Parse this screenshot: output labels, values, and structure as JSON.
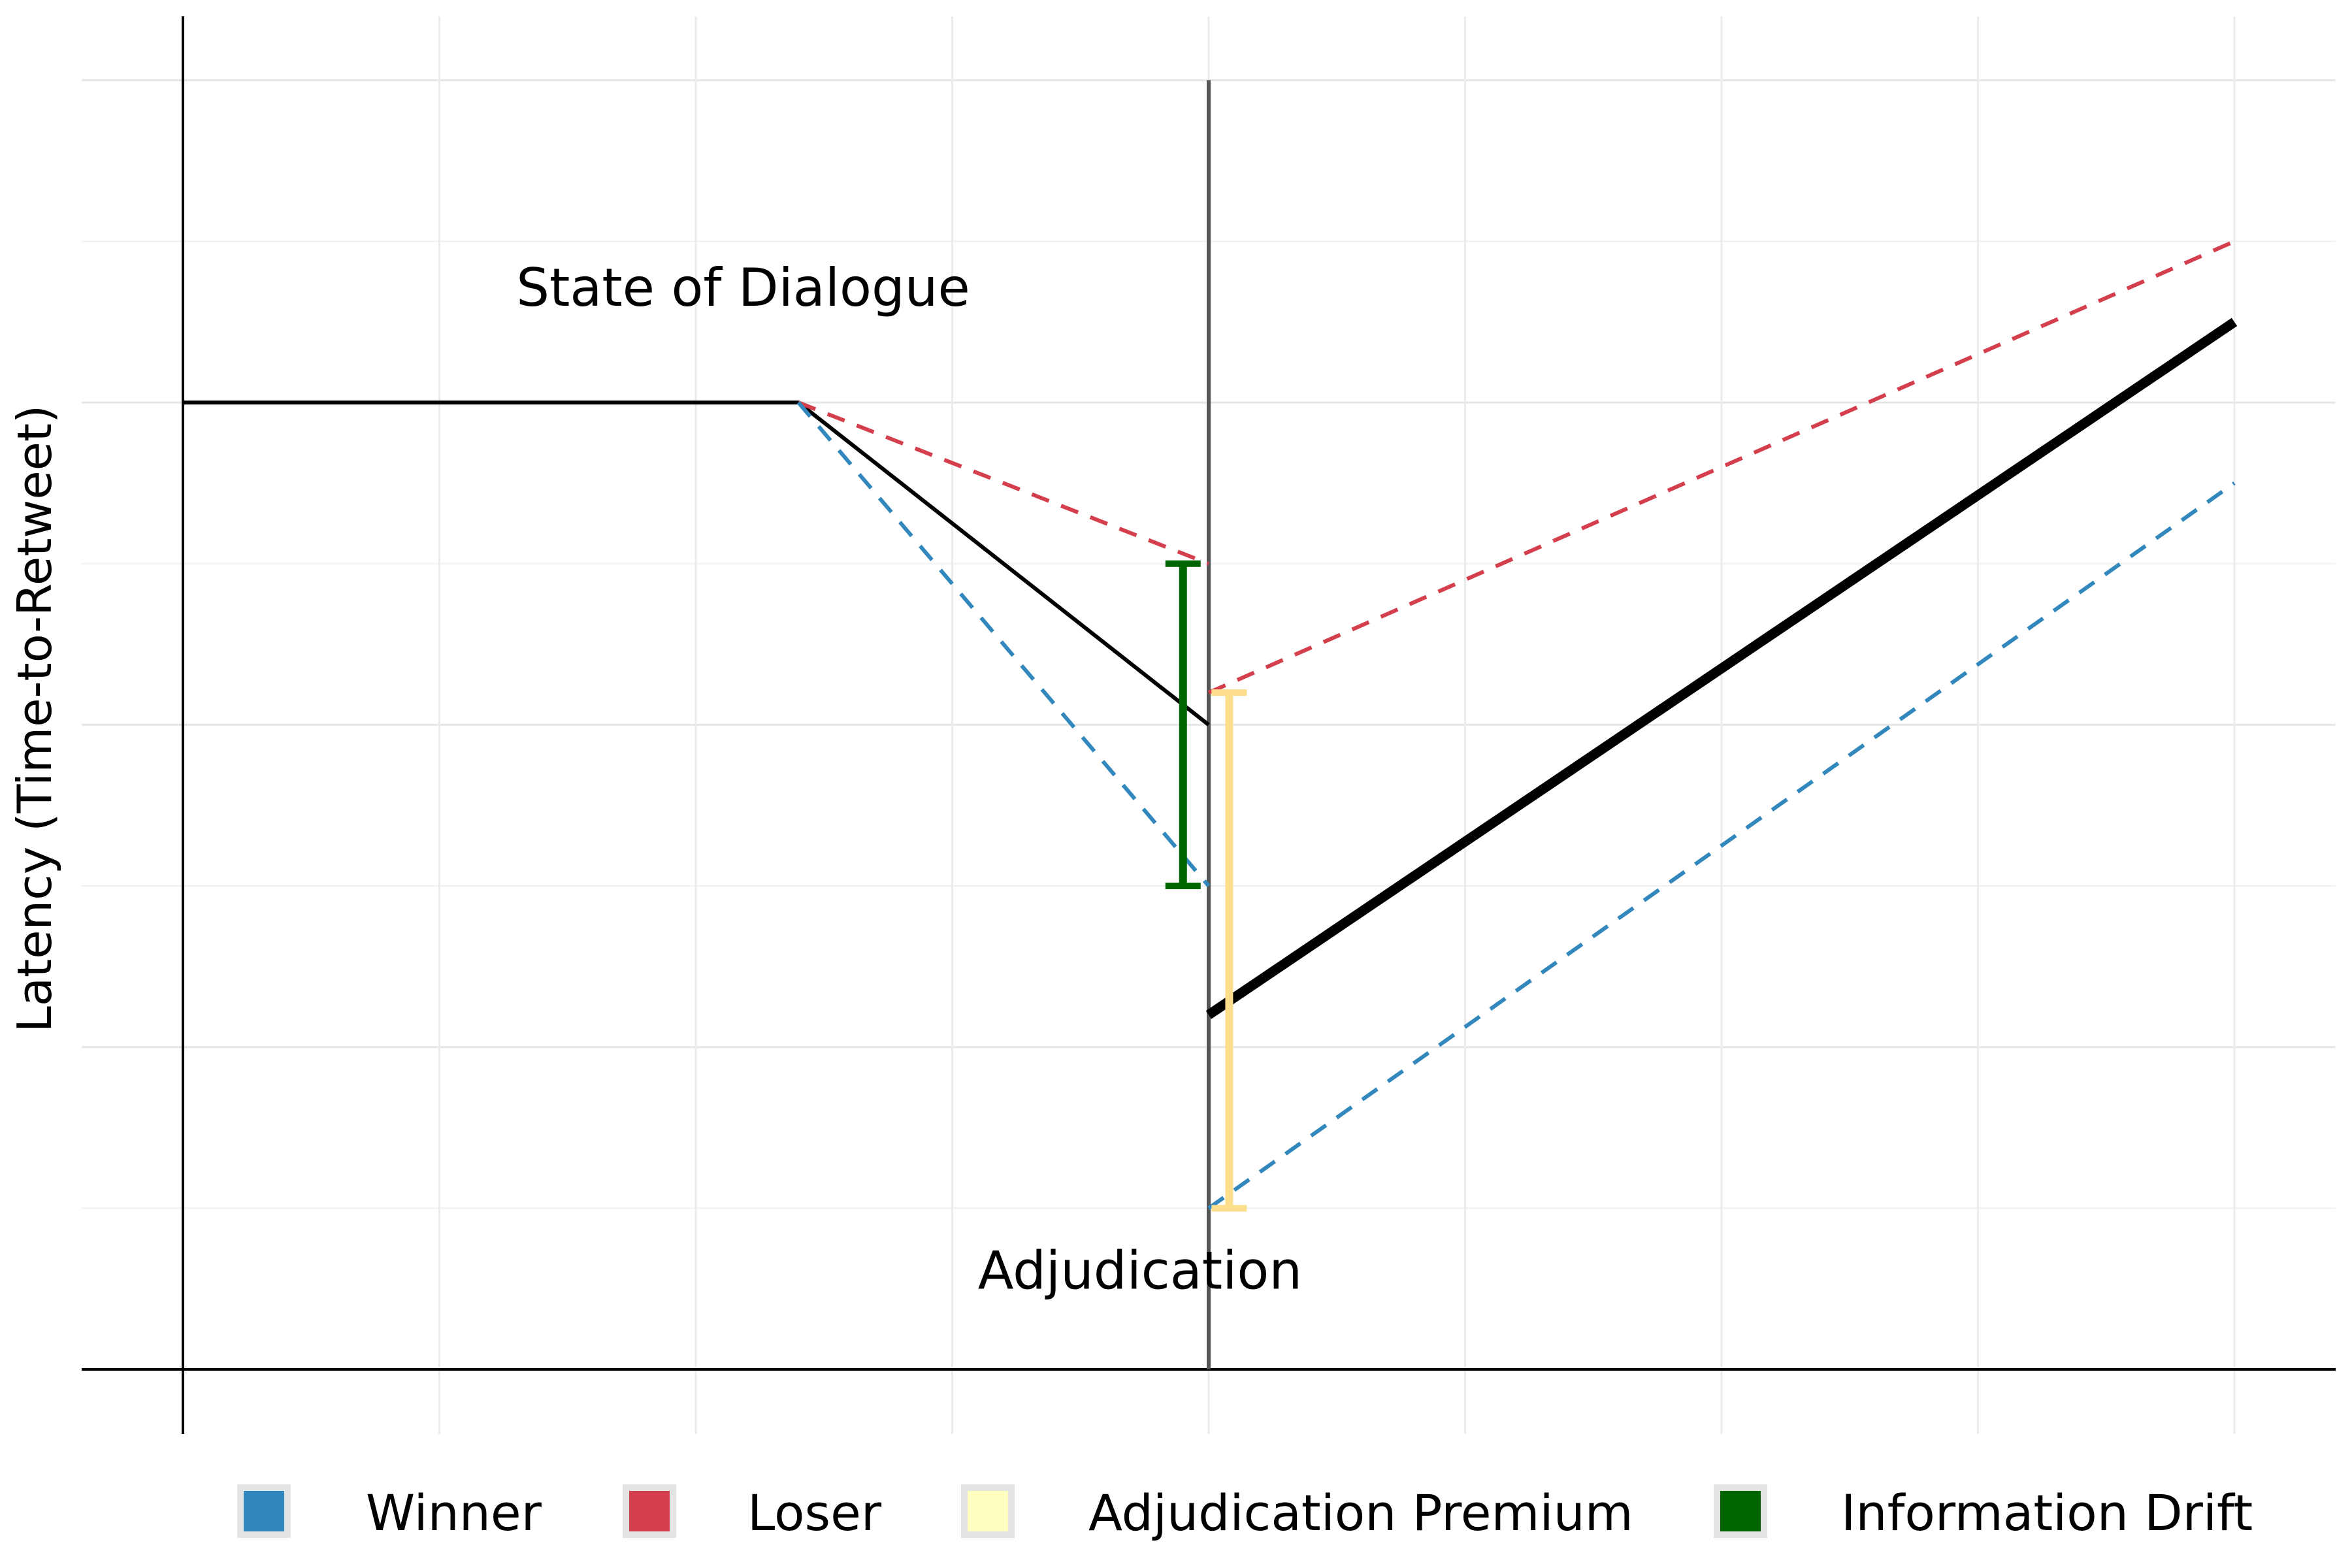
{
  "chart_data": {
    "type": "line",
    "title": "",
    "xlabel": "",
    "ylabel": "Latency (Time-to-Retweet)",
    "xlim": [
      0,
      8.4
    ],
    "ylim": [
      0,
      4.2
    ],
    "grid": true,
    "legend_position": "bottom",
    "annotations": [
      {
        "text": "State of Dialogue",
        "x": 1.3,
        "y": 3.3
      },
      {
        "text": "Adjudication",
        "x": 3.1,
        "y": 0.25
      }
    ],
    "vline": {
      "x": 4.0,
      "label": "Adjudication"
    },
    "series": [
      {
        "role": "overall-pre",
        "style": "solid",
        "width": "thin",
        "color": "#000000",
        "points": [
          [
            0,
            3.0
          ],
          [
            2.4,
            3.0
          ],
          [
            4.0,
            2.0
          ]
        ]
      },
      {
        "role": "overall-post",
        "style": "solid",
        "width": "thick",
        "color": "#000000",
        "points": [
          [
            4.0,
            1.1
          ],
          [
            8.0,
            3.25
          ]
        ]
      },
      {
        "name": "Loser",
        "style": "dashed",
        "color": "#D43F4E",
        "points": [
          [
            2.4,
            3.0
          ],
          [
            4.0,
            2.5
          ]
        ]
      },
      {
        "name": "Loser",
        "style": "dashed",
        "color": "#D43F4E",
        "points": [
          [
            4.0,
            2.1
          ],
          [
            8.0,
            3.5
          ]
        ]
      },
      {
        "name": "Winner",
        "style": "dashed",
        "color": "#3288BD",
        "points": [
          [
            2.4,
            3.0
          ],
          [
            4.0,
            1.5
          ]
        ]
      },
      {
        "name": "Winner",
        "style": "dashed",
        "color": "#3288BD",
        "points": [
          [
            4.0,
            0.5
          ],
          [
            8.0,
            2.75
          ]
        ]
      }
    ],
    "errorbars": [
      {
        "name": "Information Drift",
        "color": "#006400",
        "x": 3.9,
        "ymin": 1.5,
        "ymax": 2.5
      },
      {
        "name": "Adjudication Premium",
        "color": "#FDDE8C",
        "x": 4.08,
        "ymin": 0.5,
        "ymax": 2.1
      }
    ],
    "legend": [
      {
        "label": "Winner",
        "color": "#3288BD"
      },
      {
        "label": "Loser",
        "color": "#D43F4E"
      },
      {
        "label": "Adjudication Premium",
        "color": "#FFFFBF"
      },
      {
        "label": "Information Drift",
        "color": "#006400"
      }
    ]
  }
}
